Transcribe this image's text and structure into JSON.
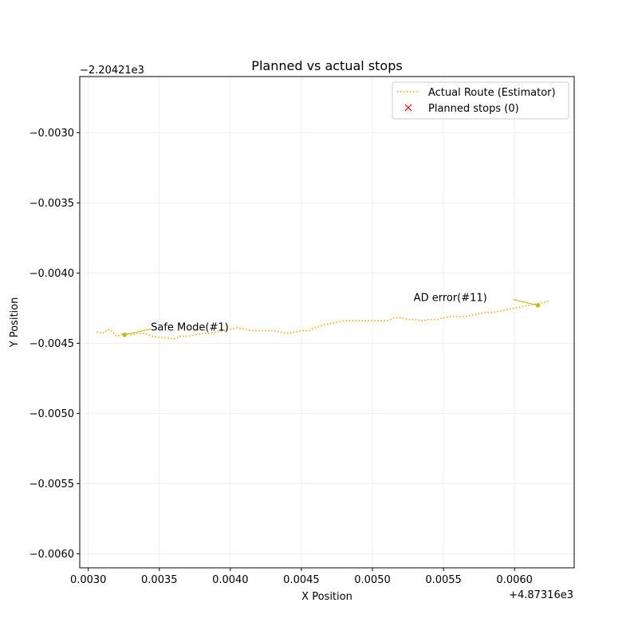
{
  "chart_data": {
    "type": "line",
    "title": "Planned vs actual stops",
    "xlabel": "X Position",
    "ylabel": "Y Position",
    "x_offset_label": "+4.87316e3",
    "y_offset_label": "−2.20421e3",
    "xlim": [
      0.00294,
      0.00642
    ],
    "ylim": [
      -0.0061,
      -0.0026
    ],
    "x_ticks": [
      0.003,
      0.0035,
      0.004,
      0.0045,
      0.005,
      0.0055,
      0.006
    ],
    "x_tick_labels": [
      "0.0030",
      "0.0035",
      "0.0040",
      "0.0045",
      "0.0050",
      "0.0055",
      "0.0060"
    ],
    "y_ticks": [
      -0.006,
      -0.0055,
      -0.005,
      -0.0045,
      -0.004,
      -0.0035,
      -0.003
    ],
    "y_tick_labels": [
      "−0.0060",
      "−0.0055",
      "−0.0050",
      "−0.0045",
      "−0.0040",
      "−0.0035",
      "−0.0030"
    ],
    "grid": true,
    "legend_position": "top-right",
    "series": [
      {
        "name": "Actual Route (Estimator)",
        "style": "dotted",
        "color": "#ffa500",
        "x": [
          0.00306,
          0.0031,
          0.00315,
          0.0032,
          0.00325,
          0.0033,
          0.00335,
          0.0034,
          0.00345,
          0.0035,
          0.00355,
          0.0036,
          0.00365,
          0.0037,
          0.00375,
          0.0038,
          0.00385,
          0.0039,
          0.00395,
          0.004,
          0.00405,
          0.0041,
          0.00415,
          0.0042,
          0.00425,
          0.0043,
          0.00435,
          0.0044,
          0.00445,
          0.0045,
          0.00455,
          0.0046,
          0.00465,
          0.0047,
          0.00475,
          0.0048,
          0.00485,
          0.0049,
          0.00495,
          0.005,
          0.00505,
          0.0051,
          0.00515,
          0.0052,
          0.00525,
          0.0053,
          0.00535,
          0.0054,
          0.00545,
          0.0055,
          0.00555,
          0.0056,
          0.00565,
          0.0057,
          0.00575,
          0.0058,
          0.00585,
          0.0059,
          0.00595,
          0.006,
          0.00605,
          0.0061,
          0.00615,
          0.0062,
          0.00624
        ],
        "y": [
          -0.00442,
          -0.00443,
          -0.0044,
          -0.00445,
          -0.00443,
          -0.00444,
          -0.00443,
          -0.00443,
          -0.00445,
          -0.00446,
          -0.00446,
          -0.00447,
          -0.00445,
          -0.00445,
          -0.00444,
          -0.00443,
          -0.00443,
          -0.00442,
          -0.00441,
          -0.0044,
          -0.00439,
          -0.0044,
          -0.00441,
          -0.00441,
          -0.00441,
          -0.00441,
          -0.00442,
          -0.00443,
          -0.00442,
          -0.00441,
          -0.00441,
          -0.00439,
          -0.00437,
          -0.00436,
          -0.00435,
          -0.00434,
          -0.00434,
          -0.00434,
          -0.00434,
          -0.00434,
          -0.00434,
          -0.00434,
          -0.00432,
          -0.00432,
          -0.00433,
          -0.00433,
          -0.00434,
          -0.00433,
          -0.00433,
          -0.00432,
          -0.00431,
          -0.00431,
          -0.00431,
          -0.0043,
          -0.00429,
          -0.00428,
          -0.00428,
          -0.00427,
          -0.00426,
          -0.00425,
          -0.00424,
          -0.00423,
          -0.00422,
          -0.00421,
          -0.0042
        ]
      },
      {
        "name": "Planned stops (0)",
        "style": "marker-x",
        "color": "#ff0000",
        "x": [],
        "y": []
      }
    ],
    "annotations": [
      {
        "text": "Safe Mode(#1)",
        "point": [
          0.003255,
          -0.00444
        ],
        "text_anchor": [
          0.00344,
          -0.00441
        ],
        "color": "#bcbd22"
      },
      {
        "text": "AD error(#11)",
        "point": [
          0.006165,
          -0.00423
        ],
        "text_anchor": [
          0.00529,
          -0.0042
        ],
        "color": "#bcbd22"
      }
    ]
  }
}
